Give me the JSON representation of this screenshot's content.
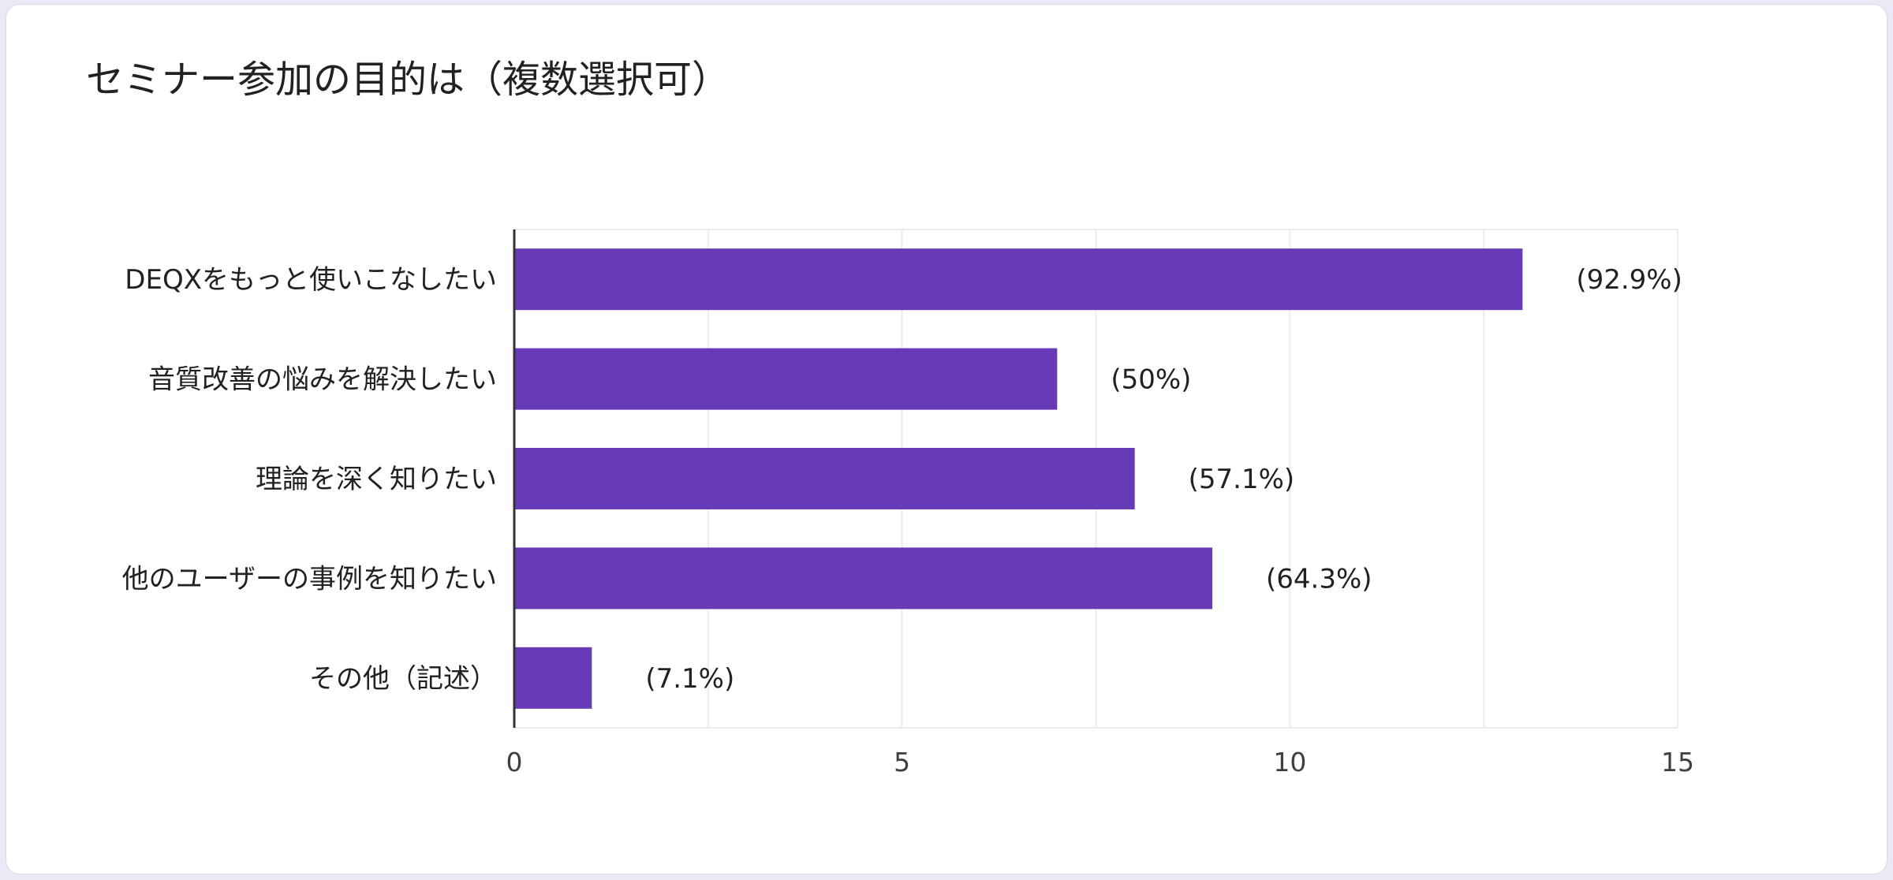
{
  "title": "セミナー参加の目的は（複数選択可）",
  "colors": {
    "bar": "#673ab7",
    "grid": "#ececec",
    "axis": "#333333"
  },
  "chart_data": {
    "type": "bar",
    "orientation": "horizontal",
    "categories": [
      "DEQXをもっと使いこなしたい",
      "音質改善の悩みを解決したい",
      "理論を深く知りたい",
      "他のユーザーの事例を知りたい",
      "その他（記述）"
    ],
    "values": [
      13,
      7,
      8,
      9,
      1
    ],
    "value_labels": [
      "(92.9%)",
      "(50%)",
      "(57.1%)",
      "(64.3%)",
      "(7.1%)"
    ],
    "xlim": [
      0,
      15
    ],
    "x_ticks": [
      "0",
      "5",
      "10",
      "15"
    ],
    "grid": true,
    "legend": "none"
  }
}
